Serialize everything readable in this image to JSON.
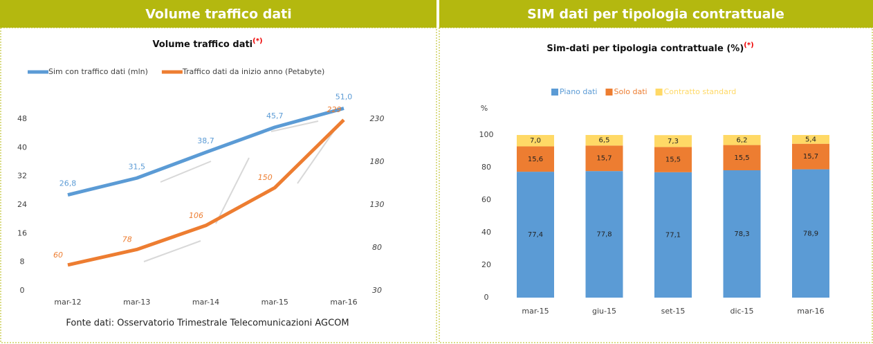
{
  "panels": [
    {
      "title": "Volume traffico dati"
    },
    {
      "title": "SIM dati per tipologia contrattuale"
    }
  ],
  "source": "Fonte dati: Osservatorio Trimestrale Telecomunicazioni AGCOM",
  "chart_data": [
    {
      "type": "line",
      "title": "Volume traffico dati",
      "title_note": "(*)",
      "categories": [
        "mar-12",
        "mar-13",
        "mar-14",
        "mar-15",
        "mar-16"
      ],
      "series": [
        {
          "name": "Sim con traffico dati (mln)",
          "color": "#5b9bd5",
          "values": [
            26.8,
            31.5,
            38.7,
            45.7,
            51.0
          ],
          "value_labels": [
            "26,8",
            "31,5",
            "38,7",
            "45,7",
            "51,0"
          ]
        },
        {
          "name": "Traffico dati da inizio anno (Petabyte)",
          "color": "#ed7d31",
          "axis": "y2",
          "values": [
            60,
            78,
            106,
            150,
            229
          ],
          "value_labels": [
            "60",
            "78",
            "106",
            "150",
            "229"
          ]
        }
      ],
      "ylim": [
        0,
        54
      ],
      "yticks": [
        0,
        8,
        16,
        24,
        32,
        40,
        48
      ],
      "y2lim": [
        30,
        255
      ],
      "y2ticks": [
        30,
        80,
        130,
        180,
        230
      ],
      "grid": false,
      "legend": "top"
    },
    {
      "type": "stacked_bar",
      "title": "Sim-dati per tipologia contrattuale (%)",
      "title_note": "(*)",
      "ylabel": "%",
      "categories": [
        "mar-15",
        "giu-15",
        "set-15",
        "dic-15",
        "mar-16"
      ],
      "series": [
        {
          "name": "Piano dati",
          "color": "#5b9bd5",
          "values": [
            77.4,
            77.8,
            77.1,
            78.3,
            78.9
          ],
          "value_labels": [
            "77,4",
            "77,8",
            "77,1",
            "78,3",
            "78,9"
          ]
        },
        {
          "name": "Solo dati",
          "color": "#ed7d31",
          "values": [
            15.6,
            15.7,
            15.5,
            15.5,
            15.7
          ],
          "value_labels": [
            "15,6",
            "15,7",
            "15,5",
            "15,5",
            "15,7"
          ]
        },
        {
          "name": "Contratto standard",
          "color": "#ffd966",
          "values": [
            7.0,
            6.5,
            7.3,
            6.2,
            5.4
          ],
          "value_labels": [
            "7,0",
            "6,5",
            "7,3",
            "6,2",
            "5,4"
          ]
        }
      ],
      "ylim": [
        0,
        100
      ],
      "yticks": [
        0,
        20,
        40,
        60,
        80,
        100
      ],
      "grid": false,
      "legend": "top"
    }
  ]
}
